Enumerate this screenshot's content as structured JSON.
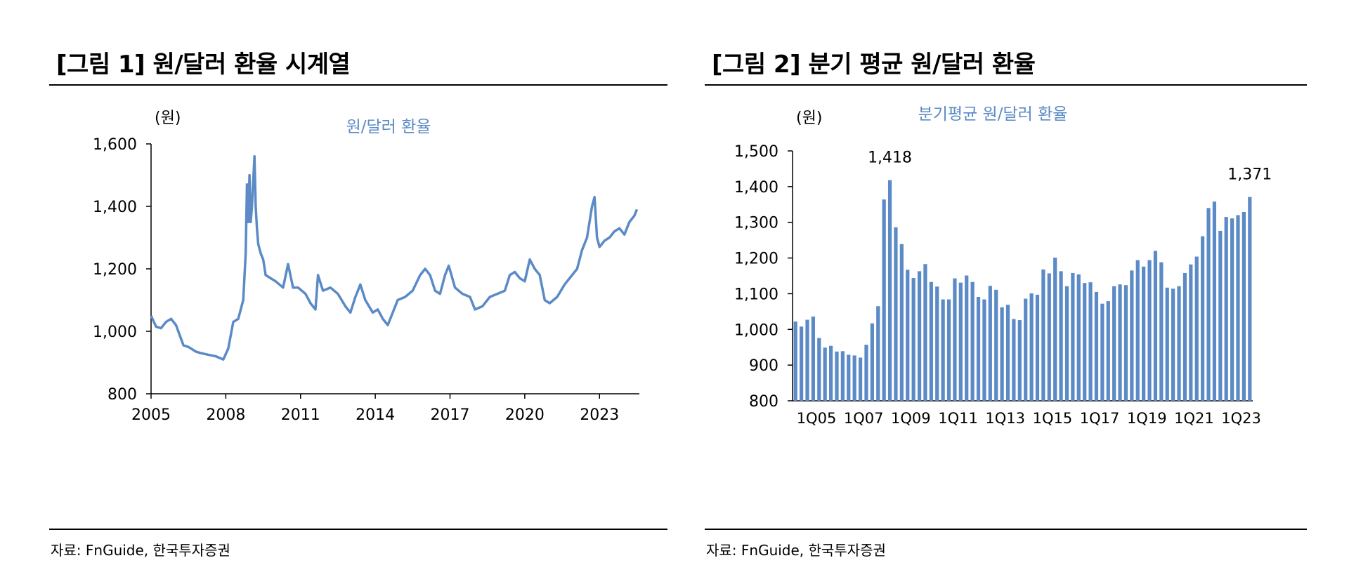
{
  "colors": {
    "series": "#5b8ac6",
    "axis": "#000000"
  },
  "figure1": {
    "title": "[그림 1] 원/달러 환율 시계열",
    "source": "자료: FnGuide, 한국투자증권"
  },
  "figure2": {
    "title": "[그림 2] 분기 평균 원/달러 환율",
    "source": "자료: FnGuide, 한국투자증권"
  },
  "chart_data": [
    {
      "type": "line",
      "title": "원/달러 환율",
      "ylabel": "(원)",
      "xlabel": "",
      "ylim": [
        800,
        1600
      ],
      "xlim": [
        2005,
        2024.6
      ],
      "yticks": [
        "800",
        "1,000",
        "1,200",
        "1,400",
        "1,600"
      ],
      "yticks_values": [
        800,
        1000,
        1200,
        1400,
        1600
      ],
      "xticks": [
        "2005",
        "2008",
        "2011",
        "2014",
        "2017",
        "2020",
        "2023"
      ],
      "xticks_values": [
        2005,
        2008,
        2011,
        2014,
        2017,
        2020,
        2023
      ],
      "series": [
        {
          "name": "원/달러 환율",
          "x": [
            2005.0,
            2005.2,
            2005.4,
            2005.6,
            2005.8,
            2006.0,
            2006.3,
            2006.5,
            2006.8,
            2007.0,
            2007.3,
            2007.6,
            2007.9,
            2008.1,
            2008.3,
            2008.5,
            2008.7,
            2008.8,
            2008.85,
            2008.9,
            2008.95,
            2009.0,
            2009.05,
            2009.1,
            2009.15,
            2009.2,
            2009.25,
            2009.3,
            2009.4,
            2009.5,
            2009.6,
            2009.8,
            2010.0,
            2010.3,
            2010.5,
            2010.7,
            2010.9,
            2011.2,
            2011.4,
            2011.6,
            2011.7,
            2011.9,
            2012.2,
            2012.5,
            2012.8,
            2013.0,
            2013.2,
            2013.4,
            2013.6,
            2013.9,
            2014.1,
            2014.3,
            2014.5,
            2014.7,
            2014.9,
            2015.2,
            2015.5,
            2015.8,
            2016.0,
            2016.2,
            2016.4,
            2016.6,
            2016.8,
            2016.95,
            2017.2,
            2017.5,
            2017.8,
            2018.0,
            2018.3,
            2018.6,
            2018.9,
            2019.2,
            2019.4,
            2019.6,
            2019.8,
            2020.0,
            2020.2,
            2020.4,
            2020.6,
            2020.8,
            2021.0,
            2021.3,
            2021.6,
            2021.9,
            2022.1,
            2022.3,
            2022.5,
            2022.7,
            2022.8,
            2022.9,
            2023.0,
            2023.2,
            2023.4,
            2023.6,
            2023.8,
            2024.0,
            2024.2,
            2024.4,
            2024.5
          ],
          "values": [
            1050,
            1015,
            1010,
            1030,
            1040,
            1020,
            955,
            950,
            935,
            930,
            925,
            920,
            910,
            945,
            1030,
            1040,
            1100,
            1250,
            1470,
            1350,
            1500,
            1350,
            1400,
            1480,
            1560,
            1400,
            1330,
            1280,
            1250,
            1230,
            1180,
            1170,
            1160,
            1140,
            1215,
            1140,
            1140,
            1120,
            1090,
            1070,
            1180,
            1130,
            1140,
            1120,
            1080,
            1060,
            1110,
            1150,
            1100,
            1060,
            1070,
            1040,
            1020,
            1060,
            1100,
            1110,
            1130,
            1180,
            1200,
            1180,
            1130,
            1120,
            1180,
            1210,
            1140,
            1120,
            1110,
            1070,
            1080,
            1110,
            1120,
            1130,
            1180,
            1190,
            1170,
            1160,
            1230,
            1200,
            1180,
            1100,
            1090,
            1110,
            1150,
            1180,
            1200,
            1260,
            1300,
            1400,
            1430,
            1300,
            1270,
            1290,
            1300,
            1320,
            1330,
            1310,
            1350,
            1370,
            1390
          ]
        }
      ]
    },
    {
      "type": "bar",
      "title": "분기평균 원/달러 환율",
      "ylabel": "(원)",
      "xlabel": "",
      "ylim": [
        800,
        1500
      ],
      "yticks": [
        "800",
        "900",
        "1,000",
        "1,100",
        "1,200",
        "1,300",
        "1,400",
        "1,500"
      ],
      "yticks_values": [
        800,
        900,
        1000,
        1100,
        1200,
        1300,
        1400,
        1500
      ],
      "xtick_labels": [
        "1Q05",
        "1Q07",
        "1Q09",
        "1Q11",
        "1Q13",
        "1Q15",
        "1Q17",
        "1Q19",
        "1Q21",
        "1Q23"
      ],
      "xtick_indices": [
        0,
        8,
        16,
        24,
        32,
        40,
        48,
        56,
        64,
        72
      ],
      "categories": [
        "1Q05",
        "2Q05",
        "3Q05",
        "4Q05",
        "1Q06",
        "2Q06",
        "3Q06",
        "4Q06",
        "1Q07",
        "2Q07",
        "3Q07",
        "4Q07",
        "1Q08",
        "2Q08",
        "3Q08",
        "4Q08",
        "1Q09",
        "2Q09",
        "3Q09",
        "4Q09",
        "1Q10",
        "2Q10",
        "3Q10",
        "4Q10",
        "1Q11",
        "2Q11",
        "3Q11",
        "4Q11",
        "1Q12",
        "2Q12",
        "3Q12",
        "4Q12",
        "1Q13",
        "2Q13",
        "3Q13",
        "4Q13",
        "1Q14",
        "2Q14",
        "3Q14",
        "4Q14",
        "1Q15",
        "2Q15",
        "3Q15",
        "4Q15",
        "1Q16",
        "2Q16",
        "3Q16",
        "4Q16",
        "1Q17",
        "2Q17",
        "3Q17",
        "4Q17",
        "1Q18",
        "2Q18",
        "3Q18",
        "4Q18",
        "1Q19",
        "2Q19",
        "3Q19",
        "4Q19",
        "1Q20",
        "2Q20",
        "3Q20",
        "4Q20",
        "1Q21",
        "2Q21",
        "3Q21",
        "4Q21",
        "1Q22",
        "2Q22",
        "3Q22",
        "4Q22",
        "1Q23",
        "2Q23",
        "3Q23",
        "4Q23",
        "1Q24",
        "2Q24"
      ],
      "values": [
        1022,
        1008,
        1027,
        1036,
        976,
        949,
        954,
        938,
        939,
        929,
        927,
        921,
        957,
        1017,
        1065,
        1364,
        1418,
        1286,
        1239,
        1167,
        1144,
        1163,
        1183,
        1133,
        1120,
        1084,
        1084,
        1143,
        1131,
        1151,
        1133,
        1091,
        1084,
        1122,
        1111,
        1062,
        1069,
        1029,
        1026,
        1086,
        1101,
        1097,
        1168,
        1157,
        1201,
        1163,
        1121,
        1158,
        1154,
        1130,
        1132,
        1105,
        1072,
        1079,
        1121,
        1126,
        1124,
        1165,
        1194,
        1176,
        1194,
        1220,
        1188,
        1117,
        1114,
        1121,
        1158,
        1182,
        1204,
        1261,
        1340,
        1358,
        1276,
        1315,
        1311,
        1320,
        1329,
        1371
      ],
      "annotations": [
        {
          "category": "1Q09",
          "label": "1,418"
        },
        {
          "category": "2Q24",
          "label": "1,371"
        }
      ]
    }
  ]
}
